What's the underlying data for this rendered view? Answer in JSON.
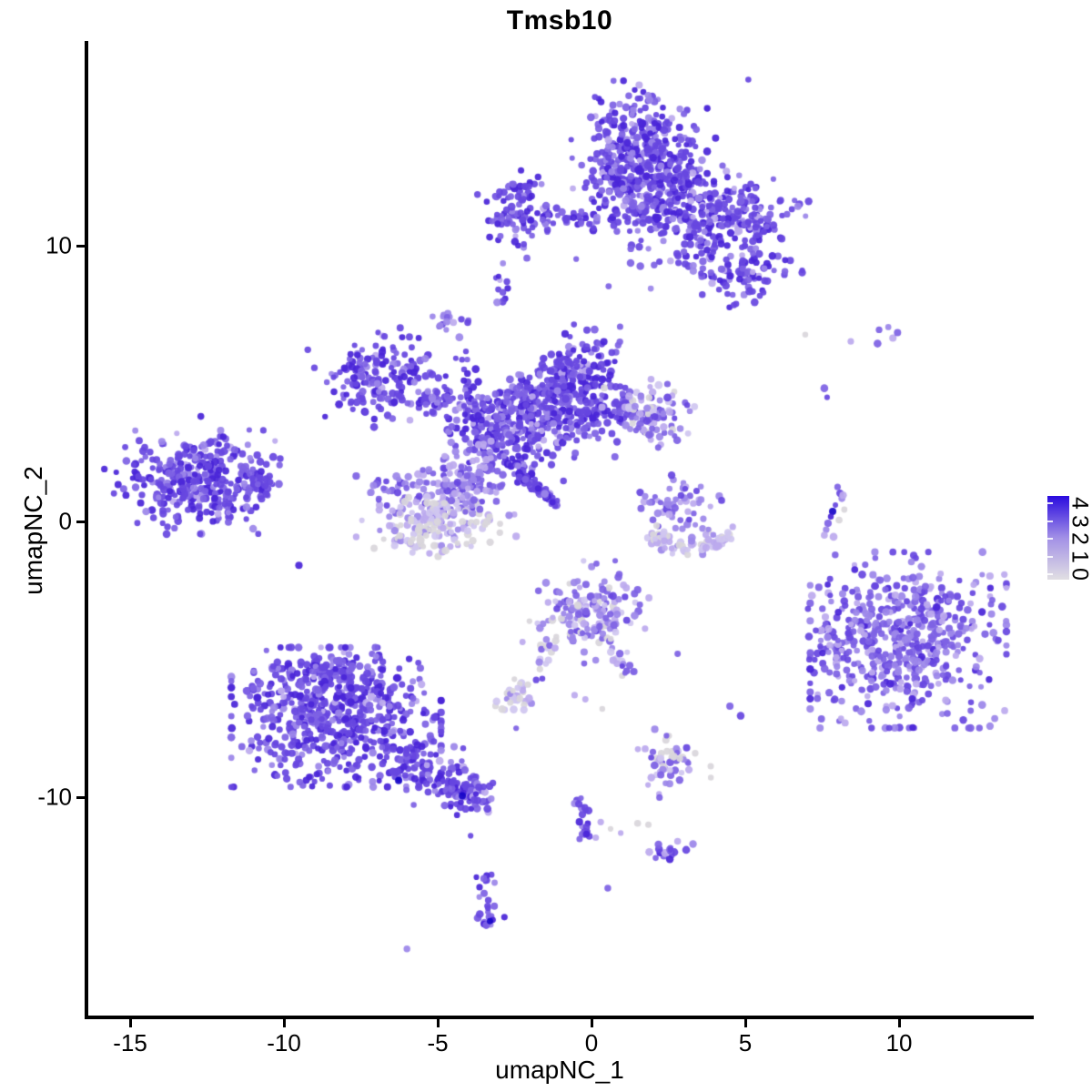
{
  "title": "Tmsb10",
  "axes": {
    "x": {
      "label": "umapNC_1",
      "ticks": [
        "-15",
        "-10",
        "-5",
        "0",
        "5",
        "10"
      ],
      "tick_values": [
        -15,
        -10,
        -5,
        0,
        5,
        10
      ]
    },
    "y": {
      "label": "umapNC_2",
      "ticks": [
        "10",
        "0",
        "-10"
      ],
      "tick_values": [
        10,
        0,
        -10
      ]
    }
  },
  "legend": {
    "tick_labels": [
      "4",
      "3",
      "2",
      "1",
      "0"
    ],
    "tick_values": [
      4,
      3,
      2,
      1,
      0
    ],
    "gradient_low": "#E1DFE3",
    "gradient_mid": "#A290E6",
    "gradient_high": "#2A0BDF"
  },
  "chart_data": {
    "type": "scatter",
    "title": "Tmsb10",
    "xlabel": "umapNC_1",
    "ylabel": "umapNC_2",
    "xlim": [
      -16.4,
      14.35
    ],
    "ylim": [
      -18.0,
      17.45
    ],
    "grid": false,
    "legend_position": "right",
    "colorbar": {
      "label_values": [
        0,
        1,
        2,
        3,
        4
      ],
      "low": "#E1DFE3",
      "high": "#2A0BDF"
    },
    "palette": {
      "navy": "#1806C8",
      "dark": "#4A26D8",
      "main": "#6747E0",
      "medium": "#7E62E4",
      "light": "#9C86E9",
      "lavender": "#BCAAEE",
      "pale": "#D0C6F0",
      "gray": "#D9D6DC"
    },
    "mixes": {
      "A": {
        "dark": 0.22,
        "main": 0.4,
        "medium": 0.24,
        "light": 0.1,
        "lavender": 0.04
      },
      "B": {
        "dark": 0.05,
        "main": 0.25,
        "medium": 0.3,
        "light": 0.25,
        "lavender": 0.15
      },
      "C": {
        "medium": 0.2,
        "light": 0.2,
        "lavender": 0.3,
        "pale": 0.15,
        "gray": 0.15
      },
      "D": {
        "gray": 0.45,
        "pale": 0.25,
        "lavender": 0.2,
        "light": 0.1
      },
      "E": {
        "main": 0.15,
        "medium": 0.3,
        "light": 0.3,
        "lavender": 0.25
      },
      "F": {
        "main": 0.1,
        "medium": 0.25,
        "light": 0.25,
        "lavender": 0.2,
        "pale": 0.1,
        "gray": 0.1
      },
      "G": {
        "lavender": 0.35,
        "pale": 0.3,
        "gray": 0.2,
        "light": 0.15
      },
      "H": {
        "gray": 0.35,
        "pale": 0.15,
        "lavender": 0.15,
        "light": 0.1,
        "medium": 0.15,
        "main": 0.1
      }
    },
    "point_radius": [
      3.0,
      4.4
    ],
    "clusters": [
      {
        "name": "top-main-core",
        "type": "gauss",
        "center": [
          1.55,
          13.25
        ],
        "sigma": [
          0.85,
          1.05
        ],
        "count": 380,
        "mix": "A"
      },
      {
        "name": "top-main-lower",
        "type": "gauss",
        "center": [
          2.55,
          11.55
        ],
        "sigma": [
          0.95,
          0.7
        ],
        "count": 150,
        "mix": "A"
      },
      {
        "name": "top-main-halo",
        "type": "gauss",
        "center": [
          1.8,
          12.6
        ],
        "sigma": [
          1.5,
          1.7
        ],
        "count": 60,
        "mix": "A"
      },
      {
        "name": "top-right-arm",
        "type": "gauss",
        "center": [
          4.85,
          11.15
        ],
        "sigma": [
          0.85,
          0.6
        ],
        "count": 150,
        "mix": "A"
      },
      {
        "name": "top-right-curl",
        "type": "gauss",
        "center": [
          4.9,
          9.0
        ],
        "sigma": [
          0.75,
          0.5
        ],
        "count": 85,
        "mix": "A"
      },
      {
        "name": "top-mid-scatter",
        "type": "gauss",
        "center": [
          3.5,
          10.2
        ],
        "sigma": [
          0.75,
          0.75
        ],
        "count": 60,
        "mix": "A"
      },
      {
        "name": "top-left-blob",
        "type": "gauss",
        "center": [
          -2.5,
          11.3
        ],
        "sigma": [
          0.55,
          0.55
        ],
        "count": 95,
        "mix": "A"
      },
      {
        "name": "top-left-chain",
        "type": "line",
        "from": [
          -1.7,
          11.0
        ],
        "to": [
          0.9,
          10.9
        ],
        "width": 0.18,
        "count": 35,
        "mix": "A"
      },
      {
        "name": "below-arm-dots",
        "type": "points",
        "points": [
          [
            -2.2,
            10.05,
            "main"
          ],
          [
            -2.1,
            9.55,
            "medium"
          ]
        ]
      },
      {
        "name": "tiny-upper",
        "type": "gauss",
        "center": [
          -2.87,
          8.45
        ],
        "sigma": [
          0.2,
          0.35
        ],
        "count": 12,
        "mix": "A"
      },
      {
        "name": "tiny-blob",
        "type": "gauss",
        "center": [
          -4.6,
          7.3
        ],
        "sigma": [
          0.32,
          0.3
        ],
        "count": 16,
        "mix": "E"
      },
      {
        "name": "bridge-chain",
        "type": "line",
        "from": [
          -4.35,
          6.45
        ],
        "to": [
          -3.8,
          4.7
        ],
        "width": 0.12,
        "count": 11,
        "mix": "A"
      },
      {
        "name": "mid-left-tip",
        "type": "gauss",
        "center": [
          -6.75,
          5.2
        ],
        "sigma": [
          1.0,
          0.7
        ],
        "count": 175,
        "mix": "A"
      },
      {
        "name": "mid-left-chain",
        "type": "line",
        "from": [
          -5.4,
          4.6
        ],
        "to": [
          -2.9,
          3.55
        ],
        "width": 0.35,
        "count": 90,
        "mix": "A"
      },
      {
        "name": "mid-core",
        "type": "gauss",
        "center": [
          -2.75,
          3.2
        ],
        "sigma": [
          0.85,
          0.75
        ],
        "count": 230,
        "mix": "A"
      },
      {
        "name": "mid-upper-arm",
        "type": "line",
        "from": [
          -2.4,
          3.9
        ],
        "to": [
          -0.6,
          5.5
        ],
        "width": 0.45,
        "count": 110,
        "mix": "A"
      },
      {
        "name": "mid-upper-blob",
        "type": "gauss",
        "center": [
          -0.4,
          5.5
        ],
        "sigma": [
          0.62,
          0.68
        ],
        "count": 140,
        "mix": "A"
      },
      {
        "name": "mid-right-arm",
        "type": "line",
        "from": [
          -1.3,
          3.35
        ],
        "to": [
          1.3,
          4.35
        ],
        "width": 0.42,
        "count": 130,
        "mix": "A"
      },
      {
        "name": "mid-right-blob",
        "type": "gauss",
        "center": [
          1.85,
          3.85
        ],
        "sigma": [
          0.58,
          0.58
        ],
        "count": 95,
        "mix": "F"
      },
      {
        "name": "mid-bulb-upper",
        "type": "gauss",
        "center": [
          -5.05,
          1.0
        ],
        "sigma": [
          1.0,
          0.6
        ],
        "count": 130,
        "mix": "E"
      },
      {
        "name": "mid-bulb-lower",
        "type": "gauss",
        "center": [
          -5.15,
          -0.1
        ],
        "sigma": [
          0.95,
          0.55
        ],
        "count": 150,
        "mix": "D"
      },
      {
        "name": "mid-streak",
        "type": "line",
        "from": [
          -2.72,
          2.15
        ],
        "to": [
          -1.1,
          0.55
        ],
        "width": 0.09,
        "count": 75,
        "mix": "A"
      },
      {
        "name": "mid-neck",
        "type": "gauss",
        "center": [
          -3.9,
          1.7
        ],
        "sigma": [
          0.5,
          0.58
        ],
        "count": 70,
        "mix": "E"
      },
      {
        "name": "mid-sparse",
        "type": "gauss",
        "center": [
          -1.9,
          4.6
        ],
        "sigma": [
          0.75,
          0.55
        ],
        "count": 40,
        "mix": "A"
      },
      {
        "name": "left-cluster",
        "type": "gauss",
        "center": [
          -12.85,
          1.5
        ],
        "sigma": [
          1.05,
          0.75
        ],
        "count": 300,
        "mix": "A"
      },
      {
        "name": "left-cluster-tip",
        "type": "line",
        "from": [
          -11.3,
          1.45
        ],
        "to": [
          -10.45,
          1.3
        ],
        "width": 0.3,
        "count": 45,
        "mix": "A"
      },
      {
        "name": "left-cluster-halo",
        "type": "gauss",
        "center": [
          -12.8,
          1.4
        ],
        "sigma": [
          1.6,
          1.15
        ],
        "count": 45,
        "mix": "A"
      },
      {
        "name": "left-upper-chain",
        "type": "points",
        "points": [
          [
            -11.85,
            2.75,
            "main"
          ],
          [
            -11.6,
            2.6,
            "medium"
          ],
          [
            -11.35,
            2.45,
            "main"
          ],
          [
            -11.1,
            2.3,
            "light"
          ]
        ]
      },
      {
        "name": "arc-upper",
        "type": "gauss",
        "center": [
          2.8,
          0.55
        ],
        "sigma": [
          0.55,
          0.5
        ],
        "count": 60,
        "mix": "E"
      },
      {
        "name": "arc-lower",
        "type": "curve",
        "from": [
          1.92,
          -0.4
        ],
        "ctrl": [
          3.1,
          -1.35
        ],
        "to": [
          4.42,
          -0.5
        ],
        "width": 0.18,
        "count": 85,
        "mix": "G"
      },
      {
        "name": "sliver",
        "type": "points",
        "points": [
          [
            8.0,
            1.25,
            "medium"
          ],
          [
            8.08,
            1.02,
            "main"
          ],
          [
            8.14,
            0.83,
            "light"
          ],
          [
            7.93,
            0.59,
            "main"
          ],
          [
            7.84,
            0.36,
            "navy"
          ],
          [
            7.78,
            0.17,
            "dark"
          ],
          [
            7.69,
            -0.07,
            "medium"
          ],
          [
            7.63,
            -0.3,
            "light"
          ],
          [
            7.57,
            -0.5,
            "lavender"
          ],
          [
            8.22,
            0.43,
            "gray"
          ],
          [
            8.05,
            0.05,
            "gray"
          ],
          [
            7.87,
            -0.56,
            "lavender"
          ],
          [
            8.18,
            0.95,
            "lavender"
          ]
        ]
      },
      {
        "name": "topright-dots",
        "type": "points",
        "points": [
          [
            6.95,
            6.77,
            "gray"
          ],
          [
            8.43,
            6.53,
            "lavender"
          ],
          [
            9.35,
            6.95,
            "medium"
          ],
          [
            9.65,
            7.05,
            "light"
          ],
          [
            9.8,
            6.65,
            "lavender"
          ],
          [
            9.95,
            6.85,
            "medium"
          ],
          [
            9.3,
            6.45,
            "medium"
          ],
          [
            7.57,
            4.83,
            "medium"
          ],
          [
            7.66,
            4.5,
            "main"
          ]
        ]
      },
      {
        "name": "right-cluster",
        "type": "gauss",
        "center": [
          10.3,
          -4.3
        ],
        "sigma": [
          1.45,
          1.45
        ],
        "count": 520,
        "mix": "B",
        "clip": 2.2
      },
      {
        "name": "right-appendage",
        "type": "gauss",
        "center": [
          7.85,
          -4.3
        ],
        "sigma": [
          0.4,
          0.85
        ],
        "count": 45,
        "mix": "B"
      },
      {
        "name": "right-bridge",
        "type": "gauss",
        "center": [
          8.7,
          -3.7
        ],
        "sigma": [
          0.3,
          0.3
        ],
        "count": 10,
        "mix": "B"
      },
      {
        "name": "center-bottom",
        "type": "gauss",
        "center": [
          -0.2,
          -3.3
        ],
        "sigma": [
          0.8,
          0.72
        ],
        "count": 165,
        "mix": "F"
      },
      {
        "name": "cb-left-trail",
        "type": "line",
        "from": [
          -1.3,
          -4.35
        ],
        "to": [
          -1.75,
          -5.35
        ],
        "width": 0.15,
        "count": 12,
        "mix": "C"
      },
      {
        "name": "cb-right-trail",
        "type": "line",
        "from": [
          0.5,
          -4.3
        ],
        "to": [
          1.3,
          -5.6
        ],
        "width": 0.18,
        "count": 18,
        "mix": "F"
      },
      {
        "name": "cb-extra-dots",
        "type": "points",
        "points": [
          [
            2.8,
            -4.8,
            "medium"
          ],
          [
            4.5,
            -6.7,
            "medium"
          ],
          [
            4.85,
            -7.05,
            "main"
          ],
          [
            -1.8,
            -5.75,
            "main"
          ]
        ]
      },
      {
        "name": "light-small",
        "type": "gauss",
        "center": [
          -2.3,
          -6.5
        ],
        "sigma": [
          0.42,
          0.3
        ],
        "count": 34,
        "mix": "D"
      },
      {
        "name": "light-small-extras",
        "type": "points",
        "points": [
          [
            -1.6,
            -5.7,
            "main"
          ],
          [
            -2.45,
            -7.5,
            "medium"
          ],
          [
            -0.55,
            -6.3,
            "lavender"
          ],
          [
            -0.2,
            -6.45,
            "lavender"
          ],
          [
            0.35,
            -6.8,
            "gray"
          ]
        ]
      },
      {
        "name": "bottomleft-core",
        "type": "gauss",
        "center": [
          -8.3,
          -7.1
        ],
        "sigma": [
          1.55,
          1.15
        ],
        "count": 600,
        "mix": "A",
        "clip": 2.2
      },
      {
        "name": "bottomleft-top",
        "type": "gauss",
        "center": [
          -8.9,
          -5.55
        ],
        "sigma": [
          0.8,
          0.45
        ],
        "count": 80,
        "mix": "A"
      },
      {
        "name": "bottomleft-tail",
        "type": "line",
        "from": [
          -6.3,
          -8.6
        ],
        "to": [
          -3.95,
          -9.9
        ],
        "width": 0.45,
        "count": 130,
        "mix": "A"
      },
      {
        "name": "bottomleft-tip",
        "type": "gauss",
        "center": [
          -3.85,
          -9.9
        ],
        "sigma": [
          0.35,
          0.3
        ],
        "count": 40,
        "mix": "A"
      },
      {
        "name": "bottomleft-navy",
        "type": "points",
        "points": [
          [
            -6.27,
            -9.4,
            "navy"
          ],
          [
            -4.2,
            -9.95,
            "navy"
          ]
        ]
      },
      {
        "name": "gray-small",
        "type": "gauss",
        "center": [
          2.45,
          -8.75
        ],
        "sigma": [
          0.55,
          0.5
        ],
        "count": 55,
        "mix": "H"
      },
      {
        "name": "bottom-trail",
        "type": "line",
        "from": [
          -0.5,
          -9.95
        ],
        "to": [
          -0.2,
          -11.55
        ],
        "width": 0.16,
        "count": 22,
        "mix": "A"
      },
      {
        "name": "bottom-scatter",
        "type": "points",
        "points": [
          [
            0.3,
            -10.9,
            "lavender"
          ],
          [
            0.62,
            -11.15,
            "gray"
          ],
          [
            0.95,
            -11.3,
            "lavender"
          ],
          [
            1.5,
            -10.95,
            "gray"
          ],
          [
            1.85,
            -11.0,
            "gray"
          ],
          [
            2.8,
            -11.6,
            "lavender"
          ],
          [
            3.3,
            -11.7,
            "light"
          ],
          [
            0.53,
            -13.3,
            "medium"
          ],
          [
            -3.93,
            -11.4,
            "main"
          ]
        ]
      },
      {
        "name": "bottom-blob",
        "type": "gauss",
        "center": [
          2.35,
          -12.05
        ],
        "sigma": [
          0.3,
          0.27
        ],
        "count": 16,
        "mix": "A"
      },
      {
        "name": "bottom-small",
        "type": "line",
        "from": [
          -3.55,
          -12.85
        ],
        "to": [
          -3.27,
          -14.75
        ],
        "width": 0.17,
        "count": 26,
        "mix": "A"
      },
      {
        "name": "bottom-small-extras",
        "type": "points",
        "points": [
          [
            -3.3,
            -14.5,
            "navy"
          ],
          [
            -3.5,
            -12.95,
            "medium"
          ],
          [
            -3.15,
            -13.1,
            "light"
          ]
        ]
      },
      {
        "name": "lone-dot",
        "type": "points",
        "points": [
          [
            -6.0,
            -15.5,
            "light"
          ]
        ]
      }
    ]
  }
}
